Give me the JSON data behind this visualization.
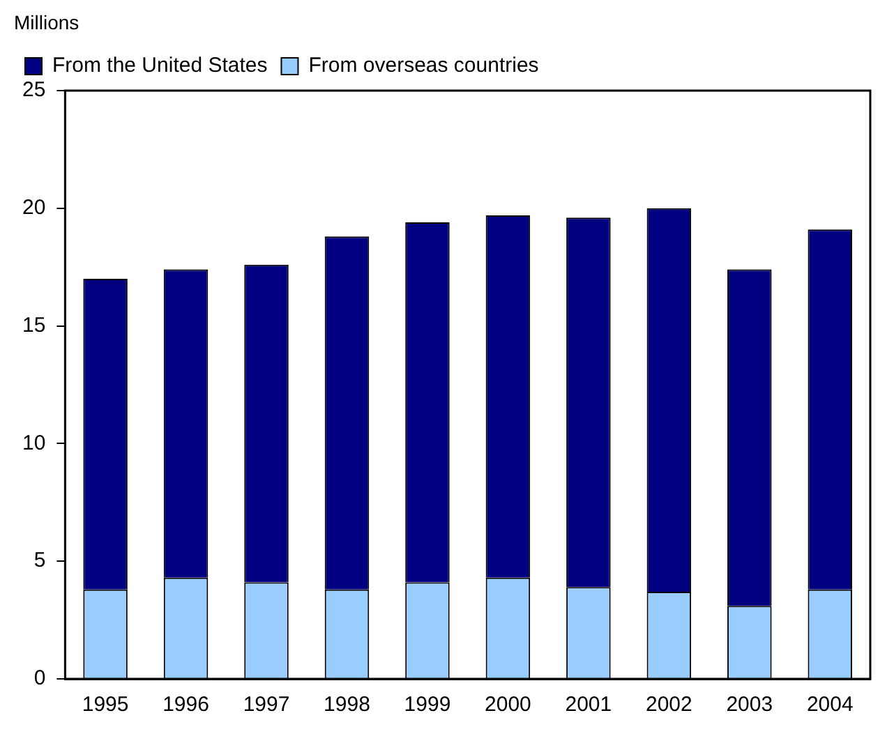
{
  "chart_data": {
    "type": "bar",
    "ylabel": "Millions",
    "stacked": true,
    "categories": [
      "1995",
      "1996",
      "1997",
      "1998",
      "1999",
      "2000",
      "2001",
      "2002",
      "2003",
      "2004"
    ],
    "series": [
      {
        "name": "From overseas countries",
        "color": "#99ccff",
        "values": [
          3.8,
          4.3,
          4.1,
          3.8,
          4.1,
          4.3,
          3.9,
          3.7,
          3.1,
          3.8
        ]
      },
      {
        "name": "From the United States",
        "color": "#000080",
        "values": [
          13.2,
          13.1,
          13.5,
          15.0,
          15.3,
          15.4,
          15.7,
          16.3,
          14.3,
          15.3
        ]
      }
    ],
    "ylim": [
      0,
      25
    ],
    "yticks": [
      0,
      5,
      10,
      15,
      20,
      25
    ],
    "grid": false,
    "legend": "top left"
  }
}
